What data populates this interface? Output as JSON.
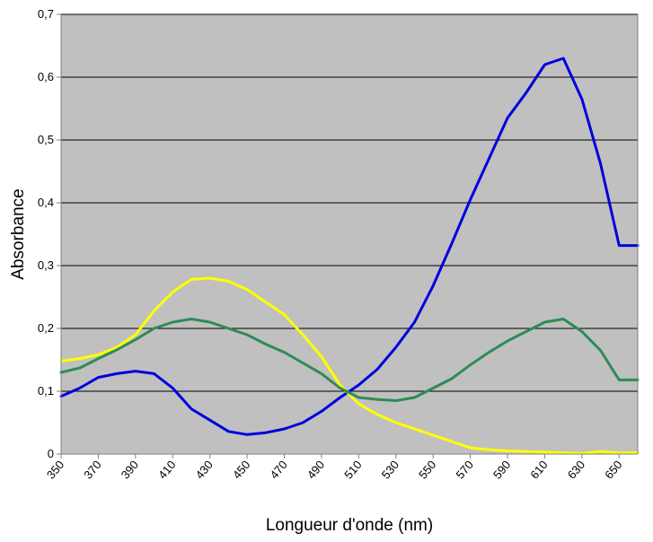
{
  "chart_data": {
    "type": "line",
    "xlabel": "Longueur d'onde (nm)",
    "ylabel": "Absorbance",
    "xlim": [
      350,
      660
    ],
    "ylim": [
      0,
      0.7
    ],
    "x_ticks": [
      350,
      370,
      390,
      410,
      430,
      450,
      470,
      490,
      510,
      530,
      550,
      570,
      590,
      610,
      630,
      650
    ],
    "x_tick_labels": [
      "350",
      "370",
      "390",
      "410",
      "430",
      "450",
      "470",
      "490",
      "510",
      "530",
      "550",
      "570",
      "590",
      "610",
      "630",
      "650"
    ],
    "y_ticks": [
      0,
      0.1,
      0.2,
      0.3,
      0.4,
      0.5,
      0.6,
      0.7
    ],
    "y_tick_labels": [
      "0",
      "0,1",
      "0,2",
      "0,3",
      "0,4",
      "0,5",
      "0,6",
      "0,7"
    ],
    "grid": "horizontal",
    "plot_background": "#c0c0c0",
    "x": [
      350,
      360,
      370,
      380,
      390,
      400,
      410,
      420,
      430,
      440,
      450,
      460,
      470,
      480,
      490,
      500,
      510,
      520,
      530,
      540,
      550,
      560,
      570,
      580,
      590,
      600,
      610,
      620,
      630,
      640,
      650,
      660
    ],
    "series": [
      {
        "color": "#0000dd",
        "values": [
          0.092,
          0.105,
          0.122,
          0.128,
          0.132,
          0.128,
          0.105,
          0.072,
          0.054,
          0.036,
          0.031,
          0.034,
          0.04,
          0.05,
          0.068,
          0.09,
          0.11,
          0.135,
          0.17,
          0.21,
          0.268,
          0.335,
          0.405,
          0.47,
          0.535,
          0.575,
          0.62,
          0.63,
          0.565,
          0.462,
          0.332,
          0.332
        ]
      },
      {
        "color": "#ffff00",
        "values": [
          0.148,
          0.152,
          0.158,
          0.17,
          0.19,
          0.228,
          0.258,
          0.278,
          0.28,
          0.275,
          0.262,
          0.242,
          0.222,
          0.19,
          0.155,
          0.11,
          0.08,
          0.063,
          0.05,
          0.04,
          0.03,
          0.02,
          0.01,
          0.007,
          0.005,
          0.004,
          0.003,
          0.002,
          0.001,
          0.004,
          0.002,
          0.002
        ]
      },
      {
        "color": "#2e8b57",
        "values": [
          0.13,
          0.137,
          0.152,
          0.166,
          0.182,
          0.2,
          0.21,
          0.215,
          0.21,
          0.2,
          0.19,
          0.175,
          0.162,
          0.145,
          0.128,
          0.105,
          0.09,
          0.087,
          0.085,
          0.09,
          0.105,
          0.12,
          0.142,
          0.162,
          0.18,
          0.195,
          0.21,
          0.215,
          0.195,
          0.165,
          0.118,
          0.118
        ]
      }
    ]
  }
}
